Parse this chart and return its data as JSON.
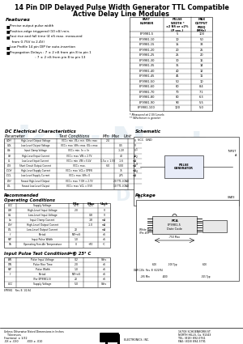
{
  "title_line1": "14 Pin DIP Delayed Pulse Width Generator TTL Compatible",
  "title_line2": "Active Delay Line Modules",
  "bg_color": "#ffffff",
  "parts_data": [
    [
      "EP9981-5",
      "5",
      "100"
    ],
    [
      "EP9981-10",
      "10",
      "50"
    ],
    [
      "EP9981-15",
      "15",
      "33"
    ],
    [
      "EP9981-20",
      "20",
      "25"
    ],
    [
      "EP9981-25",
      "25",
      "20"
    ],
    [
      "EP9981-30",
      "30",
      "16"
    ],
    [
      "EP9981-35",
      "35",
      "14"
    ],
    [
      "EP9981-40",
      "40",
      "12"
    ],
    [
      "EP9981-45",
      "45",
      "11"
    ],
    [
      "EP9981-50",
      "50",
      "10"
    ],
    [
      "EP9981-60",
      "60",
      "8.4"
    ],
    [
      "EP9981-70",
      "70",
      "7.1"
    ],
    [
      "EP9981-80",
      "80",
      "6.3"
    ],
    [
      "EP9981-90",
      "90",
      "5.5"
    ],
    [
      "EP9981-100",
      "100",
      "5.0"
    ]
  ],
  "dc_rows": [
    [
      "VOH",
      "High-Level Output Voltage",
      "VCC= min. VIL= min. IOH= max",
      "2.4",
      "",
      "V"
    ],
    [
      "VOL",
      "Low-Level Output Voltage",
      "VCC= max. VIH= max. IOL= max",
      "",
      "0.5",
      "V"
    ],
    [
      "Vik",
      "Input Clamp Voltage",
      "VCC= min. Iin = Iin",
      "",
      "-1.2V",
      "V"
    ],
    [
      "IIH",
      "High-Level Input Current",
      "VCC= max. VIN = 2.7V",
      "",
      "40",
      "μA"
    ],
    [
      "IIL",
      "Low-Level Input Current",
      "VCC= min. VIN = 0.4V",
      "1.5u = 1.5V",
      "-1.6",
      "mA"
    ],
    [
      "IOS",
      "Short Circuit Output Current",
      "VCC= max.",
      "-60",
      "-500",
      "mA"
    ],
    [
      "ICCH",
      "High-Level Supply Current",
      "VCC= max. VOL= OPEN",
      "",
      "75",
      "mA"
    ],
    [
      "ICCL",
      "Low-Level Supply Current",
      "VCC= max. VIH= 0",
      "",
      "275",
      "mA"
    ],
    [
      "IOH",
      "Fanout High-Level Output",
      "VCC= max. Y OH = 2.7V",
      "",
      "20 TTL LOAD",
      ""
    ],
    [
      "IOL",
      "Fanout Low-Level Output",
      "VCC= max. VOL = 0.5V",
      "",
      "10 TTL LOAD",
      ""
    ]
  ],
  "rec_rows": [
    [
      "VCC",
      "Supply Voltage",
      "4.75",
      "5.25",
      "V"
    ],
    [
      "VIH",
      "High-Level Input Voltage",
      "2.0",
      "",
      "V"
    ],
    [
      "VIL",
      "Low-Level Input Voltage",
      "",
      "0.8",
      "V"
    ],
    [
      "Iin",
      "Input Clamp Current",
      "",
      "-18",
      "mA"
    ],
    [
      "IOH",
      "High-Level Output Current",
      "",
      "-1.0",
      "mA"
    ],
    [
      "IOL",
      "Low-Level Output Current",
      "20",
      "",
      "mA"
    ],
    [
      "f",
      "Period",
      "PW÷nS",
      "",
      "nS"
    ],
    [
      "PW",
      "Input Pulse Width",
      "1.0",
      "",
      "nS"
    ],
    [
      "TA",
      "Operating Free-Air Temperature",
      "0",
      "+70",
      "°C"
    ]
  ],
  "inp_rows": [
    [
      "EIN",
      "Pulse Input Voltage",
      "0.2",
      "",
      "Volts"
    ],
    [
      "TIN",
      "Pulse Rise Time",
      "2.0",
      "",
      "nS"
    ],
    [
      "PW",
      "Pulse Width",
      "1.0",
      "",
      "nS"
    ],
    [
      "f",
      "Period",
      "PW÷nS",
      "",
      "nS"
    ],
    [
      "",
      "(For EP9981-5)",
      "20",
      "",
      "nS"
    ],
    [
      "VCC",
      "Supply Voltage",
      "5.0",
      "",
      "Volts"
    ]
  ],
  "watermark": "kizuNortu"
}
